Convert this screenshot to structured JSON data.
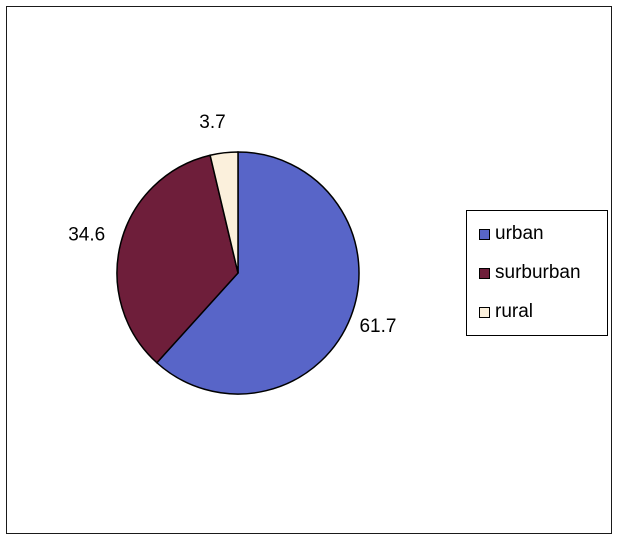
{
  "chart_data": {
    "type": "pie",
    "categories": [
      "urban",
      "surburban",
      "rural"
    ],
    "values": [
      61.7,
      34.6,
      3.7
    ],
    "data_labels": [
      "61.7",
      "34.6",
      "3.7"
    ],
    "colors": [
      "#5865c8",
      "#6e1e3a",
      "#fbf0dc"
    ],
    "title": "",
    "legend_position": "right"
  }
}
